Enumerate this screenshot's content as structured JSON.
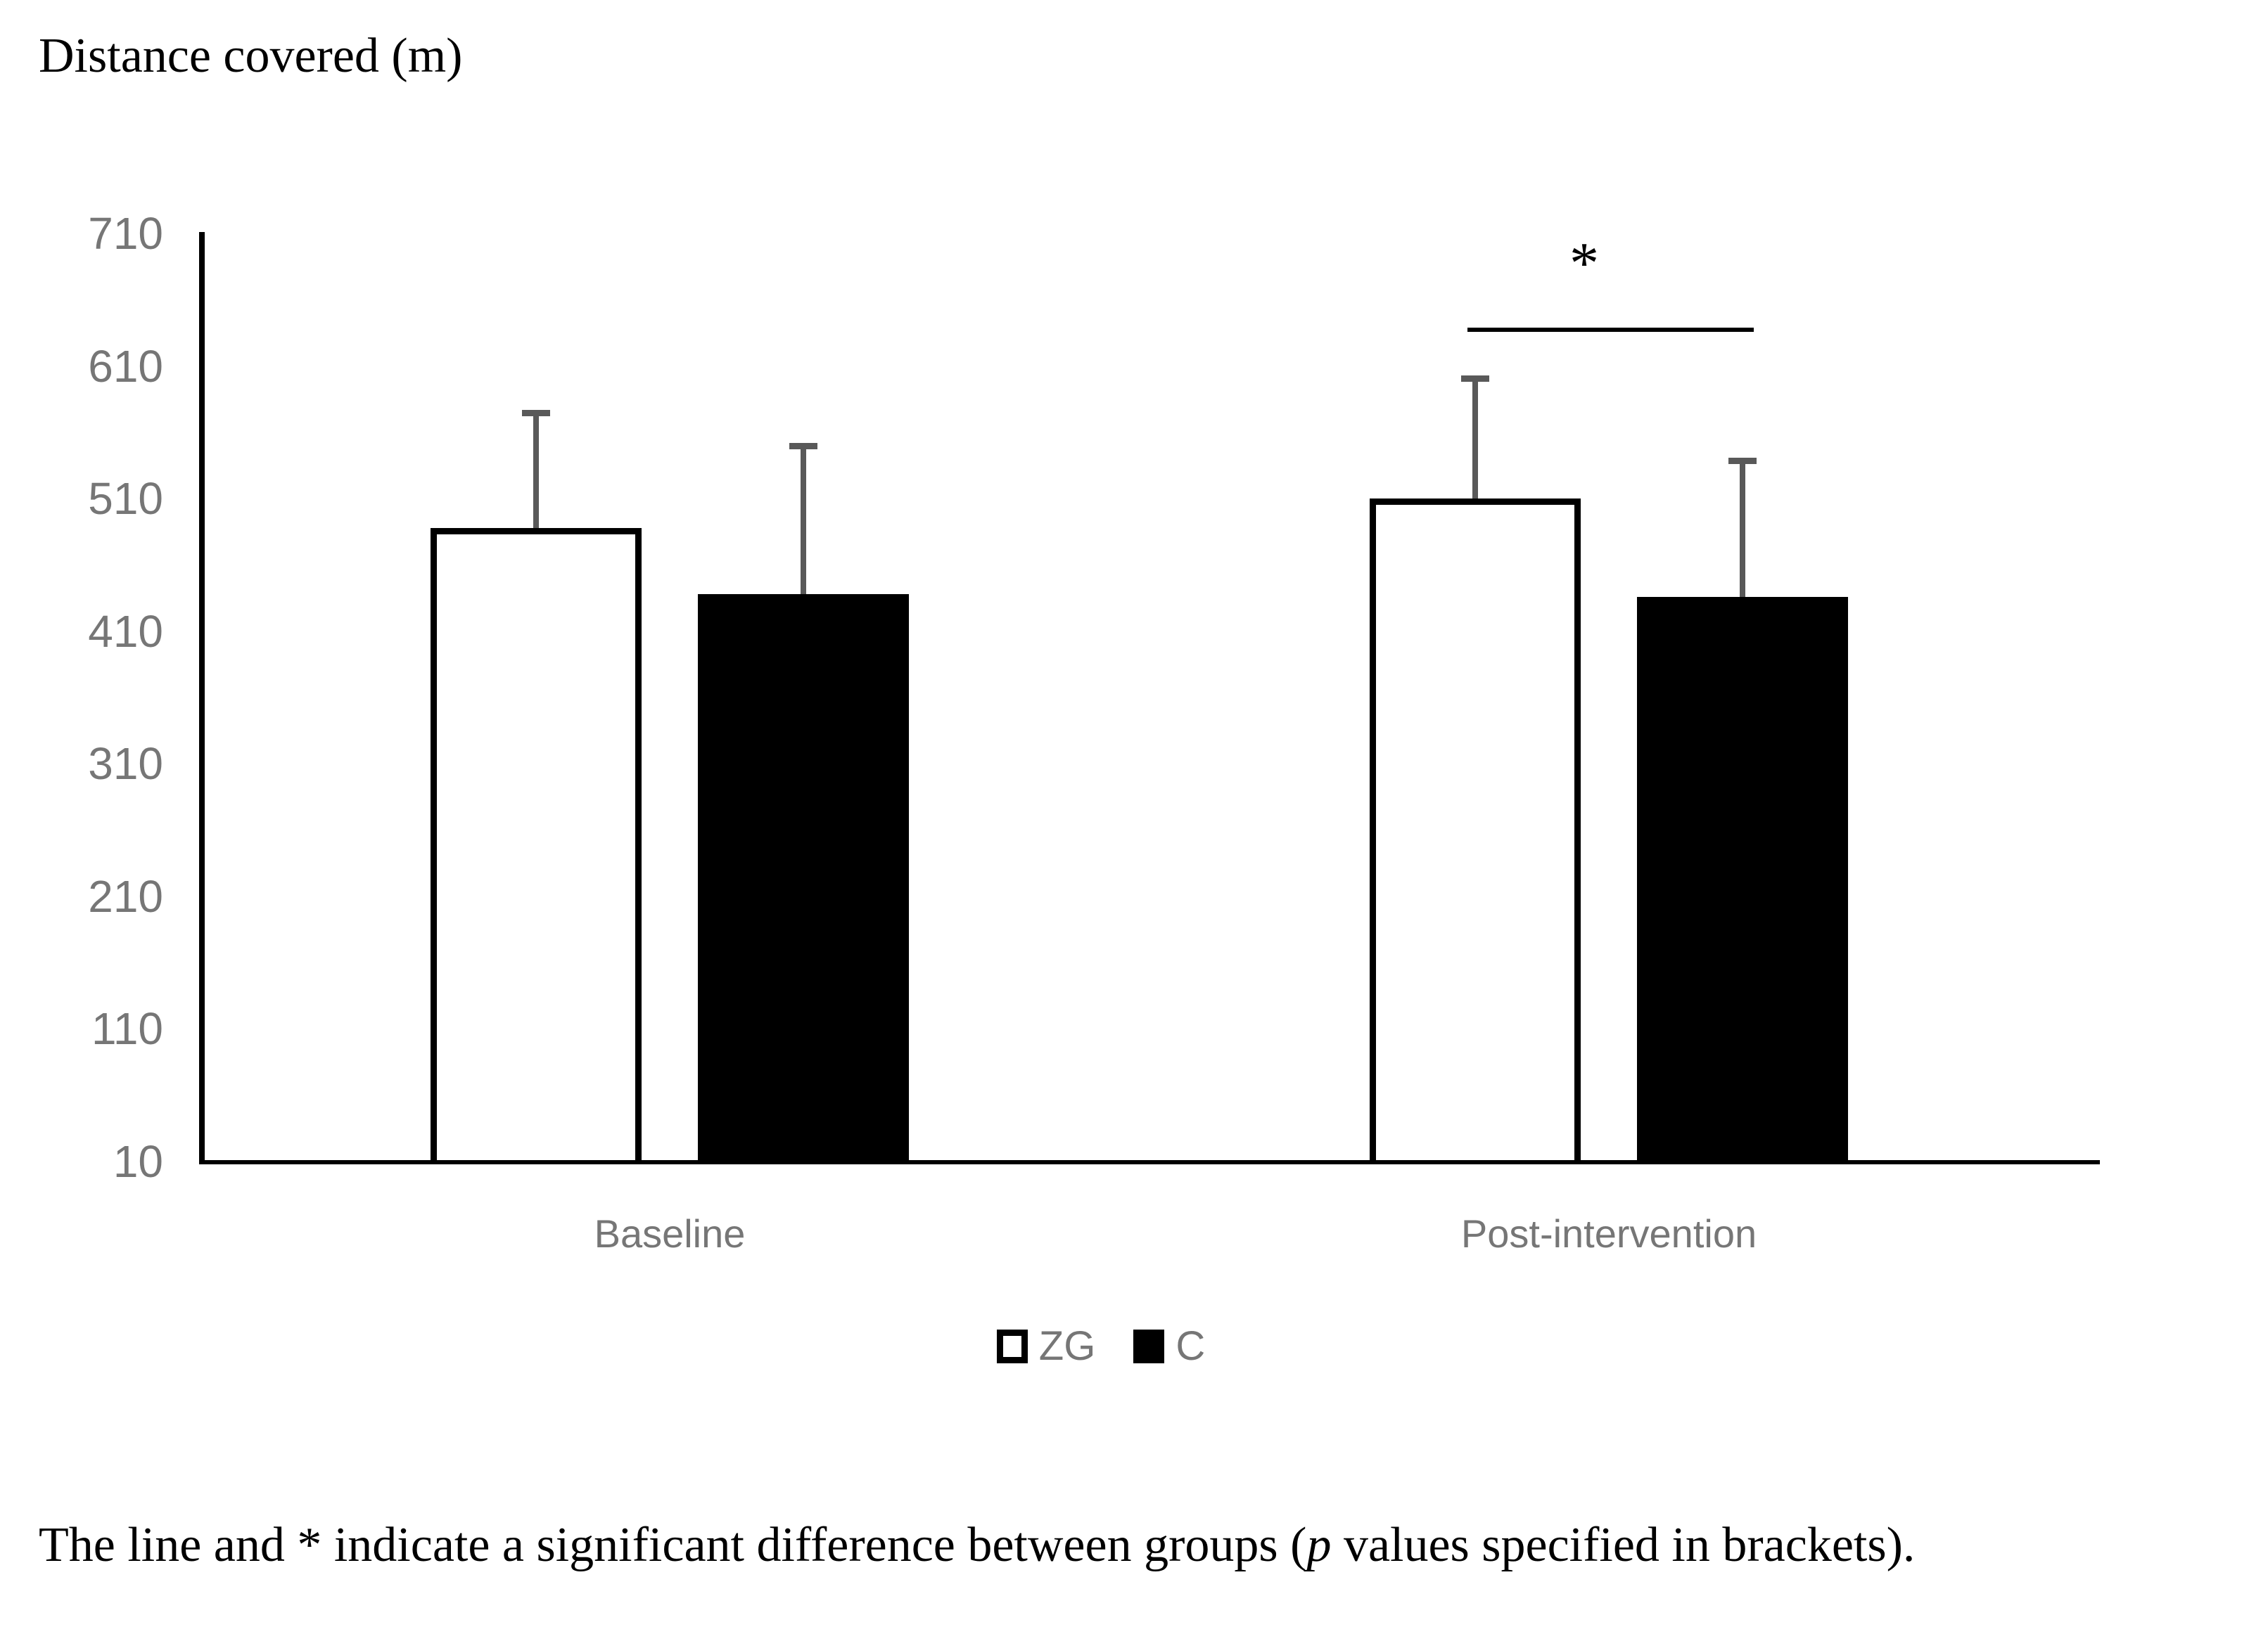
{
  "chart_data": {
    "type": "bar",
    "title": "Distance covered (m)",
    "categories": [
      "Baseline",
      "Post-intervention"
    ],
    "series": [
      {
        "name": "ZG",
        "fill": "#ffffff",
        "border": "#000000",
        "values": [
          487,
          509
        ],
        "errors": [
          89,
          93
        ]
      },
      {
        "name": "C",
        "fill": "#000000",
        "border": "#000000",
        "values": [
          437,
          435
        ],
        "errors": [
          114,
          105
        ]
      }
    ],
    "yticks": [
      710,
      610,
      510,
      410,
      310,
      210,
      110,
      10
    ],
    "ylim": [
      10,
      710
    ],
    "grid": false,
    "legend_position": "bottom",
    "error_bar_color": "#595959",
    "significance": {
      "marker": "*",
      "category": "Post-intervention",
      "between": [
        "ZG",
        "C"
      ],
      "line_y_value": 638
    }
  },
  "caption": {
    "before_italic": "The line and * indicate a significant difference between groups (",
    "italic": "p",
    "after_italic": " values specified in brackets)."
  }
}
